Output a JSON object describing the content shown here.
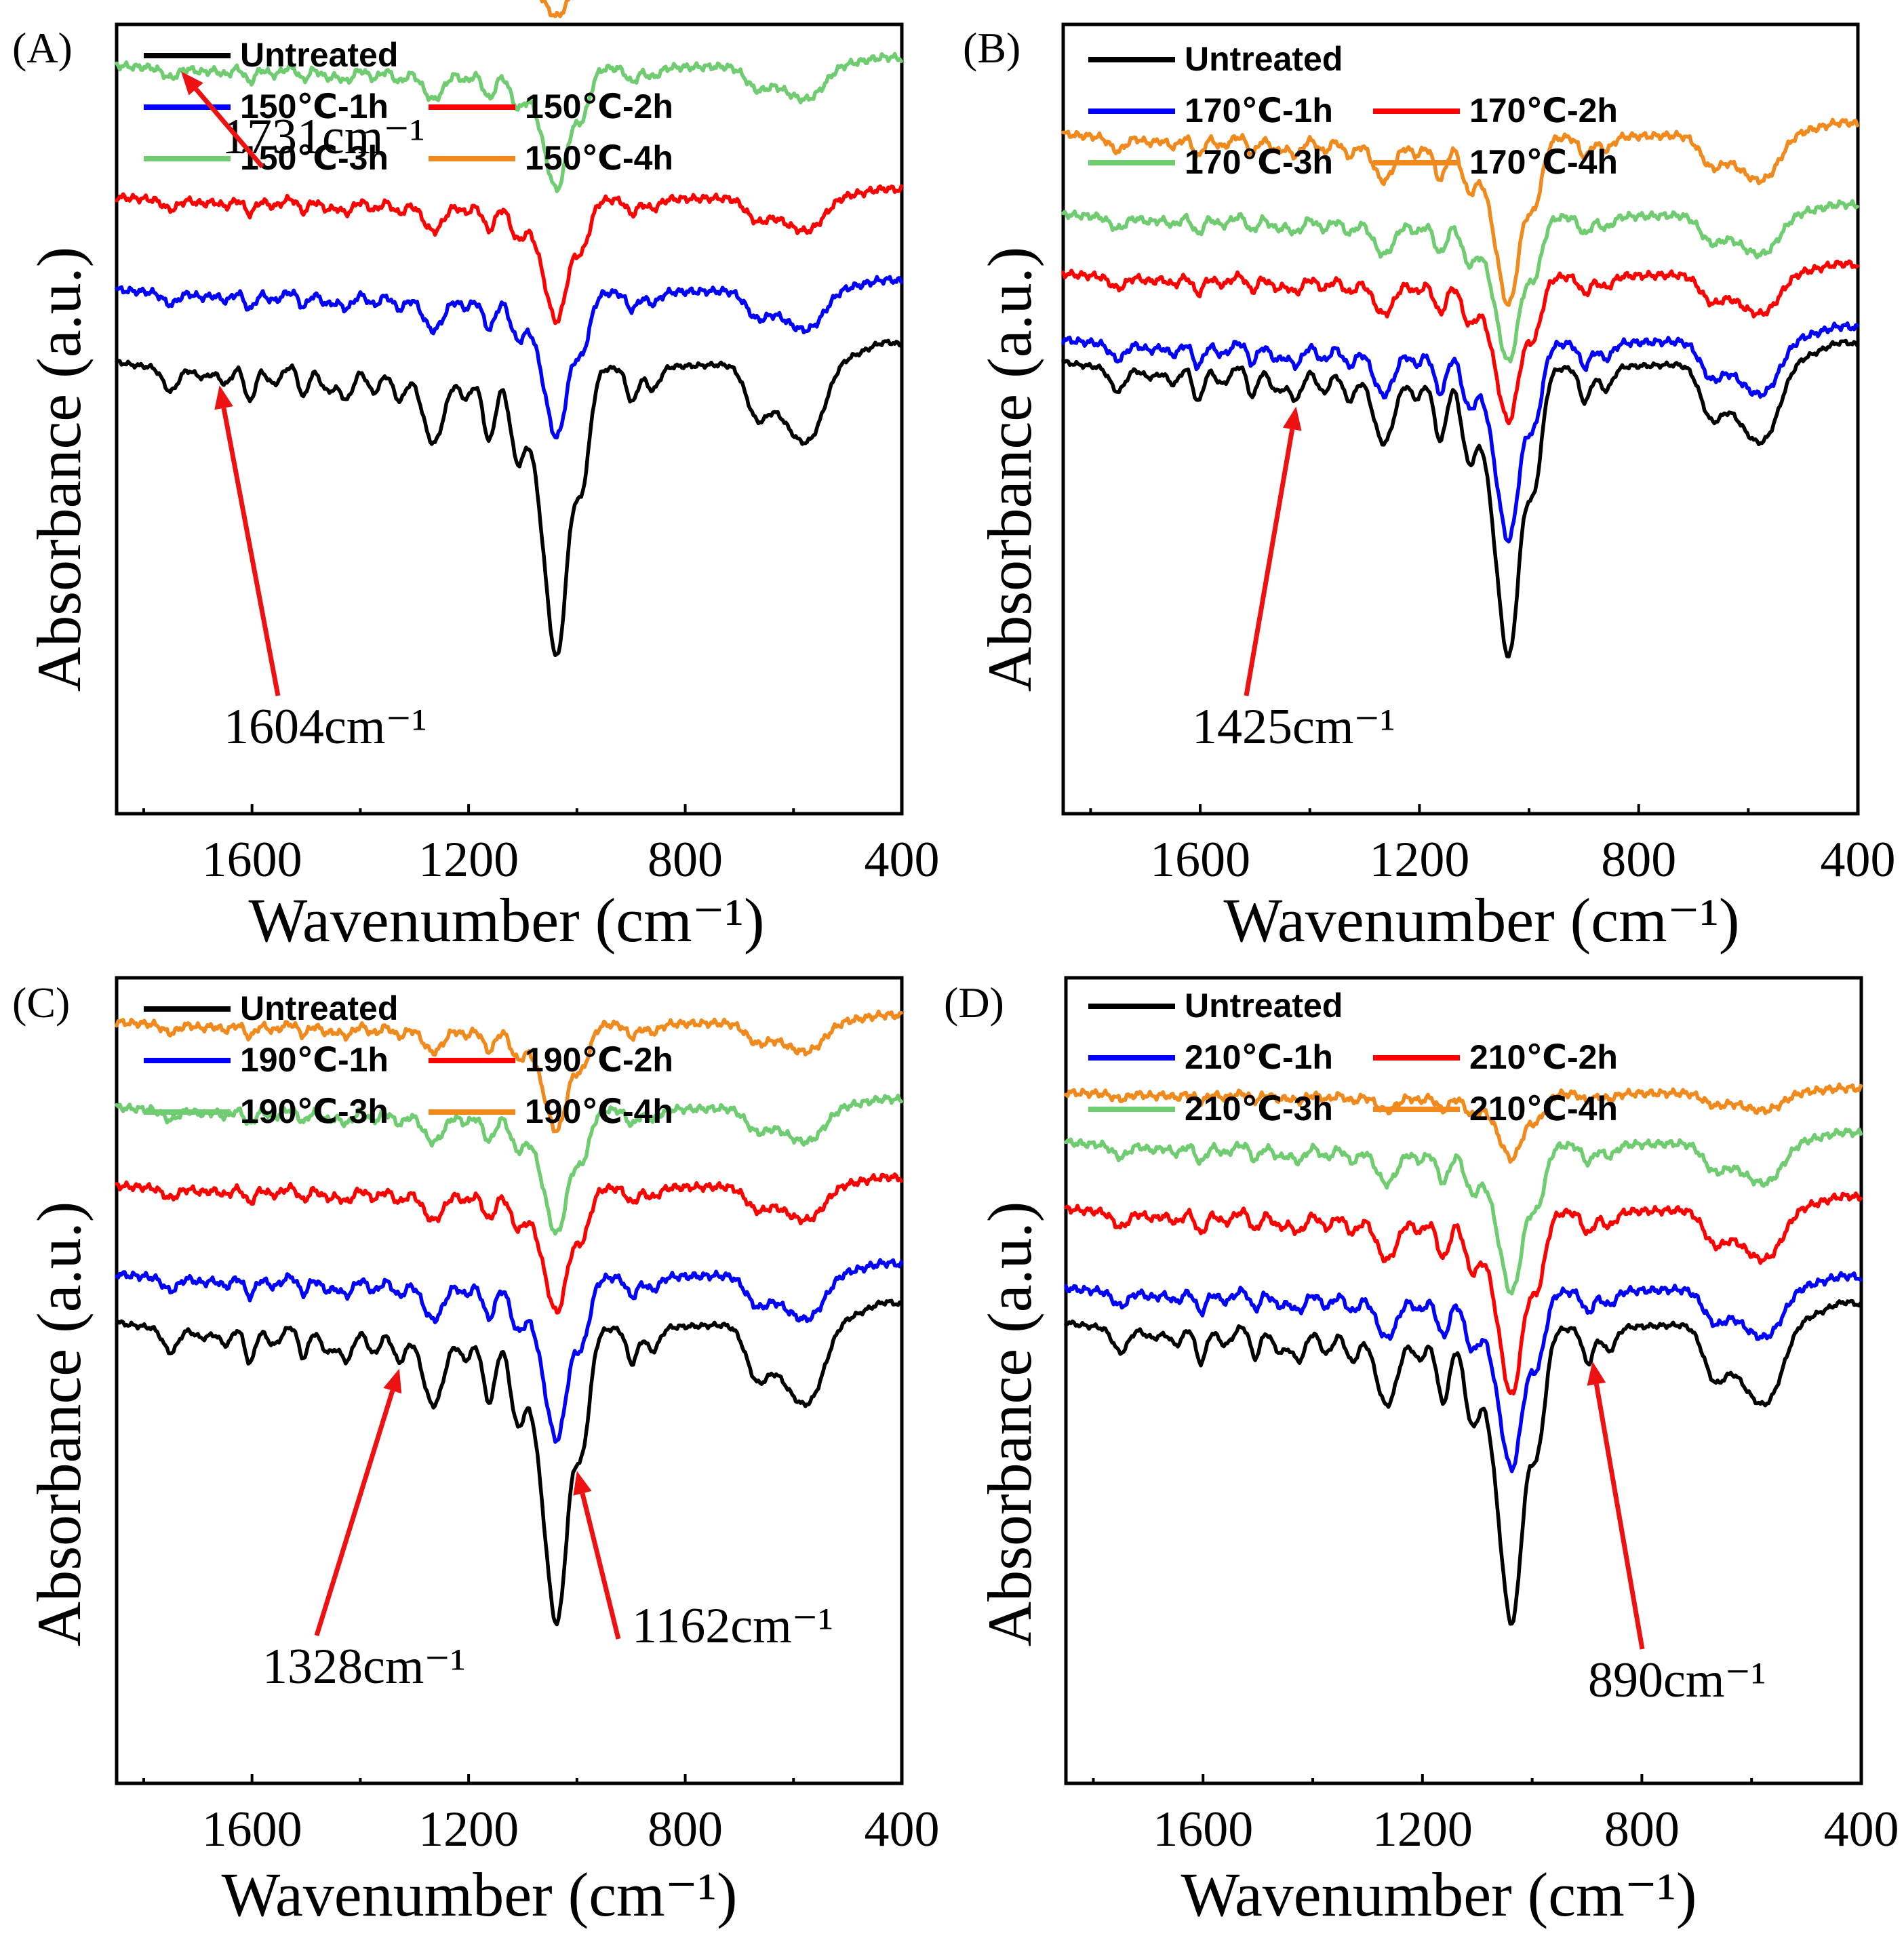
{
  "chart_data": [
    {
      "panel_label": "(A)",
      "type": "line",
      "xlabel": "Wavenumber (cm⁻¹)",
      "ylabel": "Absorbance (a.u.)",
      "xlim": [
        1850,
        400
      ],
      "x_reversed": true,
      "xticks": [
        "1600",
        "1200",
        "800",
        "400"
      ],
      "legend": "top-left",
      "series": [
        {
          "name": "Untreated",
          "color": "#000000",
          "offset": 0.0,
          "scale": 1.0
        },
        {
          "name": "150℃-1h",
          "color": "#0000ff",
          "offset": 0.64,
          "scale": 0.5
        },
        {
          "name": "150℃-2h",
          "color": "#ff0000",
          "offset": 1.45,
          "scale": 0.42
        },
        {
          "name": "150℃-3h",
          "color": "#70cc70",
          "offset": 2.6,
          "scale": 0.42
        },
        {
          "name": "150℃-4h",
          "color": "#f08a1c",
          "offset": 3.42,
          "scale": 0.15
        }
      ],
      "annotations": [
        {
          "text": "1731cm⁻¹",
          "x": 1731,
          "target_series": 3,
          "label_side": "up"
        },
        {
          "text": "1604cm⁻¹",
          "x": 1660,
          "target_series": 0,
          "label_side": "down"
        }
      ]
    },
    {
      "panel_label": "(B)",
      "type": "line",
      "xlabel": "Wavenumber (cm⁻¹)",
      "ylabel": "Absorbance (a.u.)",
      "xlim": [
        1850,
        400
      ],
      "x_reversed": true,
      "xticks": [
        "1600",
        "1200",
        "800",
        "400"
      ],
      "legend": "top-left",
      "series": [
        {
          "name": "Untreated",
          "color": "#000000",
          "offset": 0.0,
          "scale": 1.0
        },
        {
          "name": "170℃-1h",
          "color": "#0000ff",
          "offset": 0.2,
          "scale": 0.68
        },
        {
          "name": "170℃-2h",
          "color": "#ff0000",
          "offset": 0.78,
          "scale": 0.5
        },
        {
          "name": "170℃-3h",
          "color": "#70cc70",
          "offset": 1.3,
          "scale": 0.5
        },
        {
          "name": "170℃-4h",
          "color": "#f08a1c",
          "offset": 2.0,
          "scale": 0.58
        }
      ],
      "annotations": [
        {
          "text": "1425cm⁻¹",
          "x": 1425,
          "target_series": 0,
          "label_side": "down"
        }
      ]
    },
    {
      "panel_label": "(C)",
      "type": "line",
      "xlabel": "Wavenumber (cm⁻¹)",
      "ylabel": "Absorbance (a.u.)",
      "xlim": [
        1850,
        400
      ],
      "x_reversed": true,
      "xticks": [
        "1600",
        "1200",
        "800",
        "400"
      ],
      "legend": "top-left",
      "series": [
        {
          "name": "Untreated",
          "color": "#000000",
          "offset": 0.0,
          "scale": 1.0
        },
        {
          "name": "190℃-1h",
          "color": "#0000ff",
          "offset": 0.42,
          "scale": 0.55
        },
        {
          "name": "190℃-2h",
          "color": "#ff0000",
          "offset": 1.18,
          "scale": 0.42
        },
        {
          "name": "190℃-3h",
          "color": "#70cc70",
          "offset": 1.85,
          "scale": 0.42
        },
        {
          "name": "190℃-4h",
          "color": "#f08a1c",
          "offset": 2.58,
          "scale": 0.36
        }
      ],
      "annotations": [
        {
          "text": "1328cm⁻¹",
          "x": 1328,
          "target_series": 0,
          "label_side": "down"
        },
        {
          "text": "1162cm⁻¹",
          "x": 1000,
          "target_series": 0,
          "label_side": "right"
        }
      ]
    },
    {
      "panel_label": "(D)",
      "type": "line",
      "xlabel": "Wavenumber (cm⁻¹)",
      "ylabel": "Absorbance (a.u.)",
      "xlim": [
        1850,
        400
      ],
      "x_reversed": true,
      "xticks": [
        "1600",
        "1200",
        "800",
        "400"
      ],
      "legend": "top-left",
      "series": [
        {
          "name": "Untreated",
          "color": "#000000",
          "offset": 0.0,
          "scale": 1.0
        },
        {
          "name": "210℃-1h",
          "color": "#0000ff",
          "offset": 0.3,
          "scale": 0.6
        },
        {
          "name": "210℃-2h",
          "color": "#ff0000",
          "offset": 0.98,
          "scale": 0.62
        },
        {
          "name": "210℃-3h",
          "color": "#70cc70",
          "offset": 1.55,
          "scale": 0.5
        },
        {
          "name": "210℃-4h",
          "color": "#f08a1c",
          "offset": 1.98,
          "scale": 0.22
        }
      ],
      "annotations": [
        {
          "text": "890cm⁻¹",
          "x": 890,
          "target_series": 0,
          "label_side": "down"
        }
      ]
    }
  ]
}
